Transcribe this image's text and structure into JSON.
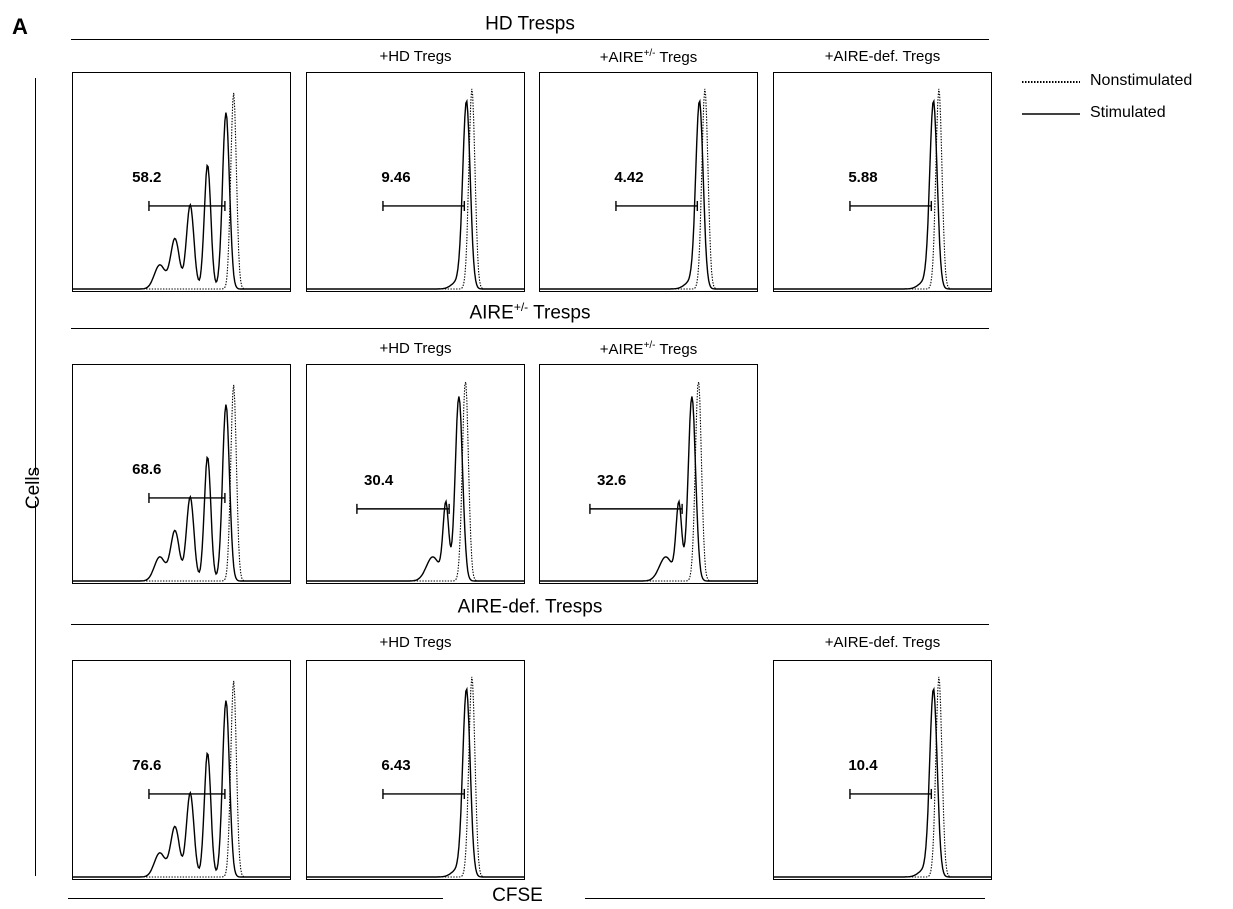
{
  "panel_label": "A",
  "legend": {
    "nonstimulated": "Nonstimulated",
    "stimulated": "Stimulated"
  },
  "axes": {
    "ylabel": "Cells",
    "xlabel": "CFSE"
  },
  "rows": [
    {
      "title_main": "HD Tresps",
      "title_sup": "",
      "title_rest": ""
    },
    {
      "title_main": "AIRE",
      "title_sup": "+/-",
      "title_rest": " Tresps"
    },
    {
      "title_main": "AIRE-def. Tresps",
      "title_sup": "",
      "title_rest": ""
    }
  ],
  "chart_data": {
    "type": "histogram-grid",
    "series_legend": [
      "Nonstimulated",
      "Stimulated"
    ],
    "xlabel": "CFSE",
    "ylabel": "Cells",
    "panels": [
      {
        "row": 0,
        "col": 0,
        "title_main": "",
        "title_sup": "",
        "title_rest": "",
        "gate_value": "58.2",
        "mode": "strong"
      },
      {
        "row": 0,
        "col": 1,
        "title_main": "+HD Tregs",
        "title_sup": "",
        "title_rest": "",
        "gate_value": "9.46",
        "mode": "single"
      },
      {
        "row": 0,
        "col": 2,
        "title_main": "+AIRE",
        "title_sup": "+/-",
        "title_rest": " Tregs",
        "gate_value": "4.42",
        "mode": "single"
      },
      {
        "row": 0,
        "col": 3,
        "title_main": "+AIRE-def. Tregs",
        "title_sup": "",
        "title_rest": "",
        "gate_value": "5.88",
        "mode": "single"
      },
      {
        "row": 1,
        "col": 0,
        "title_main": "",
        "title_sup": "",
        "title_rest": "",
        "gate_value": "68.6",
        "mode": "strong"
      },
      {
        "row": 1,
        "col": 1,
        "title_main": "+HD Tregs",
        "title_sup": "",
        "title_rest": "",
        "gate_value": "30.4",
        "mode": "medium"
      },
      {
        "row": 1,
        "col": 2,
        "title_main": "+AIRE",
        "title_sup": "+/-",
        "title_rest": " Tregs",
        "gate_value": "32.6",
        "mode": "medium"
      },
      {
        "row": 2,
        "col": 0,
        "title_main": "",
        "title_sup": "",
        "title_rest": "",
        "gate_value": "76.6",
        "mode": "strong"
      },
      {
        "row": 2,
        "col": 1,
        "title_main": "+HD Tregs",
        "title_sup": "",
        "title_rest": "",
        "gate_value": "6.43",
        "mode": "single"
      },
      {
        "row": 2,
        "col": 3,
        "title_main": "+AIRE-def. Tregs",
        "title_sup": "",
        "title_rest": "",
        "gate_value": "10.4",
        "mode": "single"
      }
    ]
  }
}
